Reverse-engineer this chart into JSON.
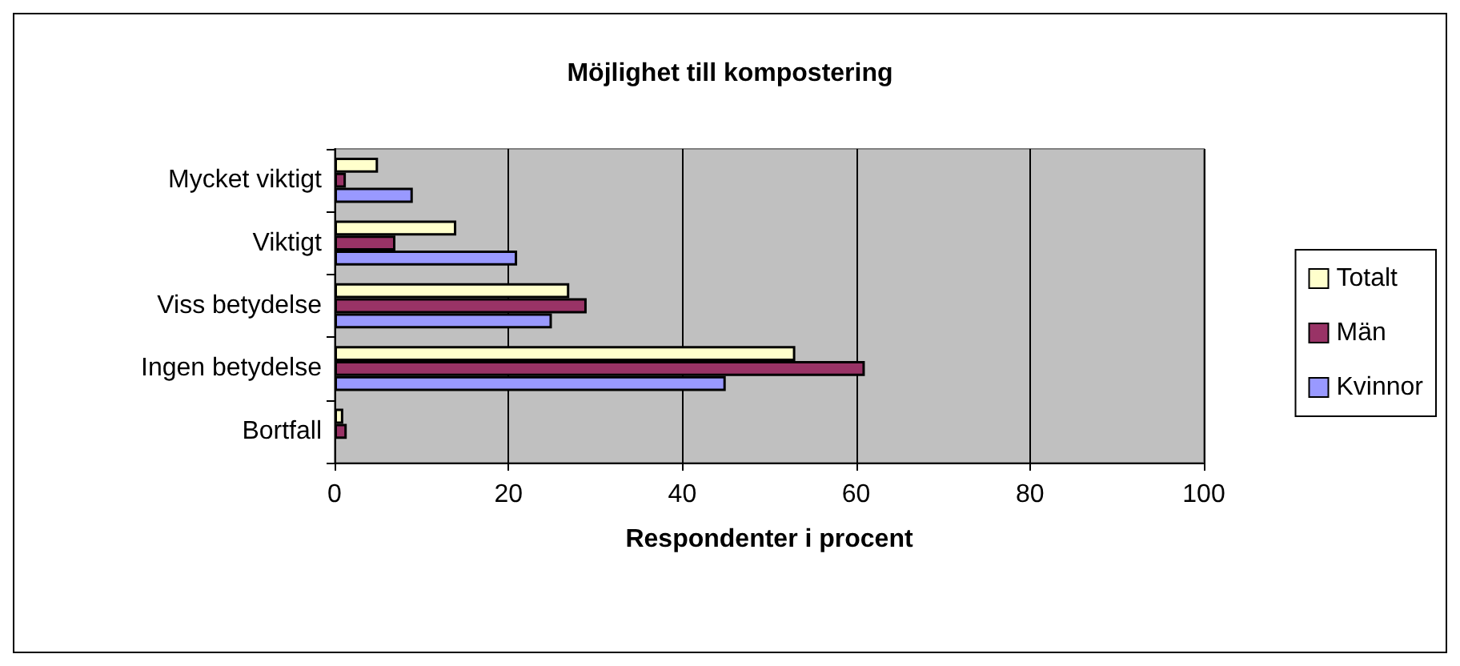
{
  "chart_data": {
    "type": "bar",
    "orientation": "horizontal",
    "title": "Möjlighet till kompostering",
    "xlabel": "Respondenter i procent",
    "categories": [
      "Mycket viktigt",
      "Viktigt",
      "Viss betydelse",
      "Ingen betydelse",
      "Bortfall"
    ],
    "series": [
      {
        "name": "Totalt",
        "color": "#ffffcc",
        "values": [
          5,
          14,
          27,
          53,
          1
        ]
      },
      {
        "name": "Män",
        "color": "#993366",
        "values": [
          1.3,
          7,
          29,
          61,
          1.4
        ]
      },
      {
        "name": "Kvinnor",
        "color": "#9999ff",
        "values": [
          9,
          21,
          25,
          45,
          null
        ]
      }
    ],
    "xlim": [
      0,
      100
    ],
    "xticks": [
      0,
      20,
      40,
      60,
      80,
      100
    ],
    "grid": "x",
    "legend": "right"
  }
}
